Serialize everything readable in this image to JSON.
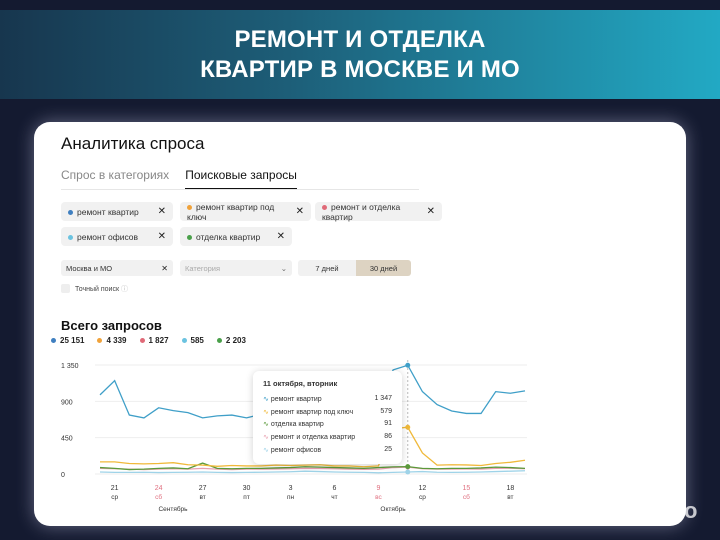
{
  "banner": {
    "line1": "РЕМОНТ И ОТДЕЛКА",
    "line2": "КВАРТИР В МОСКВЕ И МО"
  },
  "page_title": "Аналитика спроса",
  "tabs": [
    {
      "label": "Спрос в категориях",
      "active": false
    },
    {
      "label": "Поисковые запросы",
      "active": true
    }
  ],
  "chips": [
    {
      "label": "ремонт квартир",
      "color": "#3f7fc0"
    },
    {
      "label": "ремонт квартир под ключ",
      "color": "#f0a23a"
    },
    {
      "label": "ремонт и отделка квартир",
      "color": "#e06a78"
    },
    {
      "label": "ремонт офисов",
      "color": "#6bc3e0"
    },
    {
      "label": "отделка квартир",
      "color": "#4aa04a"
    }
  ],
  "region": {
    "value": "Москва и МО"
  },
  "category": {
    "placeholder": "Категория"
  },
  "period": {
    "options": [
      "7 дней",
      "30 дней"
    ],
    "selected": "30 дней"
  },
  "exact_search": {
    "label": "Точный поиск",
    "checked": false
  },
  "totals_title": "Всего запросов",
  "totals": [
    {
      "value": "25 151",
      "color": "#3f7fc0"
    },
    {
      "value": "4 339",
      "color": "#f0a23a"
    },
    {
      "value": "1 827",
      "color": "#e06a78"
    },
    {
      "value": "585",
      "color": "#6bc3e0"
    },
    {
      "value": "2 203",
      "color": "#4aa04a"
    }
  ],
  "tooltip": {
    "title": "11 октября, вторник",
    "rows": [
      {
        "label": "ремонт квартир",
        "value": "1 347",
        "color": "#3f9fc8"
      },
      {
        "label": "ремонт квартир под ключ",
        "value": "579",
        "color": "#f0b93a"
      },
      {
        "label": "отделка квартир",
        "value": "91",
        "color": "#5a9a3a"
      },
      {
        "label": "ремонт и отделка квартир",
        "value": "86",
        "color": "#e8a0b0"
      },
      {
        "label": "ремонт офисов",
        "value": "25",
        "color": "#9fd3e8"
      }
    ]
  },
  "chart_data": {
    "type": "line",
    "ylim": [
      0,
      1350
    ],
    "yticks": [
      "0",
      "450",
      "900",
      "1 350"
    ],
    "x": [
      "2022-09-20",
      "2022-09-21",
      "2022-09-22",
      "2022-09-23",
      "2022-09-24",
      "2022-09-25",
      "2022-09-26",
      "2022-09-27",
      "2022-09-28",
      "2022-09-29",
      "2022-09-30",
      "2022-10-01",
      "2022-10-02",
      "2022-10-03",
      "2022-10-04",
      "2022-10-05",
      "2022-10-06",
      "2022-10-07",
      "2022-10-08",
      "2022-10-09",
      "2022-10-10",
      "2022-10-11",
      "2022-10-12",
      "2022-10-13",
      "2022-10-14",
      "2022-10-15",
      "2022-10-16",
      "2022-10-17",
      "2022-10-18",
      "2022-10-19"
    ],
    "xticks": [
      {
        "day": "21",
        "wd": "ср",
        "weekend": false
      },
      {
        "day": "24",
        "wd": "сб",
        "weekend": true
      },
      {
        "day": "27",
        "wd": "вт",
        "weekend": false
      },
      {
        "day": "30",
        "wd": "пт",
        "weekend": false
      },
      {
        "day": "3",
        "wd": "пн",
        "weekend": false
      },
      {
        "day": "6",
        "wd": "чт",
        "weekend": false
      },
      {
        "day": "9",
        "wd": "вс",
        "weekend": true
      },
      {
        "day": "12",
        "wd": "ср",
        "weekend": false
      },
      {
        "day": "15",
        "wd": "сб",
        "weekend": true
      },
      {
        "day": "18",
        "wd": "вт",
        "weekend": false
      }
    ],
    "months": [
      "Сентябрь",
      "Октябрь"
    ],
    "highlight": "2022-10-11",
    "series": [
      {
        "name": "ремонт квартир",
        "color": "#3f9fc8",
        "values": [
          980,
          1156,
          730,
          695,
          820,
          785,
          760,
          695,
          720,
          730,
          695,
          740,
          760,
          790,
          780,
          800,
          760,
          740,
          720,
          800,
          1290,
          1347,
          1020,
          860,
          780,
          750,
          750,
          1020,
          1000,
          1030
        ]
      },
      {
        "name": "ремонт квартир под ключ",
        "color": "#f0b93a",
        "values": [
          150,
          150,
          130,
          125,
          130,
          140,
          115,
          110,
          95,
          105,
          100,
          100,
          110,
          105,
          110,
          115,
          100,
          100,
          90,
          100,
          560,
          579,
          260,
          110,
          115,
          112,
          105,
          130,
          145,
          170
        ]
      },
      {
        "name": "отделка квартир",
        "color": "#5a9a3a",
        "values": [
          80,
          70,
          55,
          60,
          70,
          75,
          65,
          135,
          70,
          65,
          70,
          70,
          75,
          80,
          90,
          85,
          80,
          75,
          70,
          80,
          88,
          91,
          70,
          65,
          70,
          70,
          75,
          85,
          80,
          70
        ]
      },
      {
        "name": "ремонт и отделка квартир",
        "color": "#e8a0b0",
        "values": [
          70,
          65,
          60,
          55,
          60,
          65,
          60,
          70,
          60,
          55,
          60,
          60,
          62,
          65,
          70,
          68,
          65,
          60,
          58,
          60,
          80,
          86,
          65,
          60,
          60,
          62,
          60,
          70,
          72,
          65
        ]
      },
      {
        "name": "ремонт офисов",
        "color": "#9fd3e8",
        "values": [
          25,
          20,
          20,
          22,
          18,
          20,
          22,
          25,
          20,
          18,
          20,
          22,
          25,
          28,
          35,
          30,
          25,
          22,
          20,
          15,
          20,
          25,
          30,
          22,
          20,
          22,
          25,
          30,
          35,
          40
        ]
      }
    ]
  },
  "watermark": "Avito"
}
